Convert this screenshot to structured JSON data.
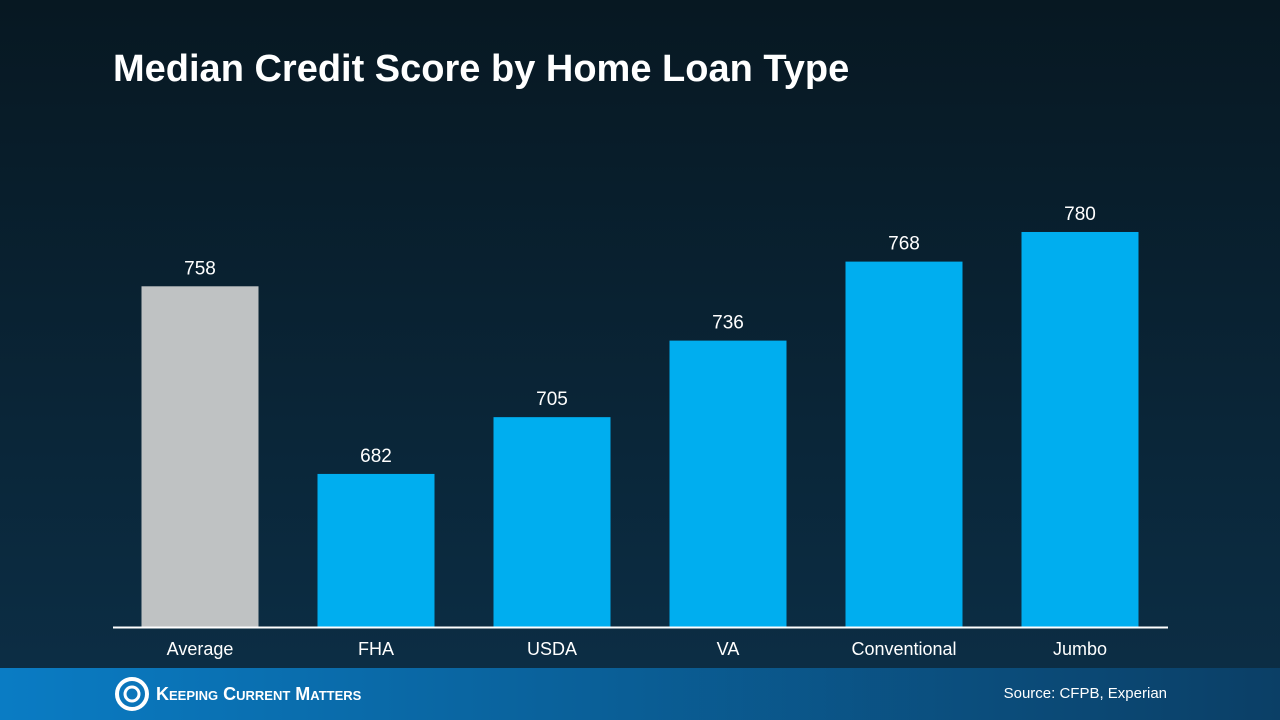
{
  "chart_data": {
    "type": "bar",
    "title": "Median Credit Score by Home Loan Type",
    "categories": [
      "Average",
      "FHA",
      "USDA",
      "VA",
      "Conventional",
      "Jumbo"
    ],
    "values": [
      758,
      682,
      705,
      736,
      768,
      780
    ],
    "colors": [
      "#bfc2c3",
      "#00aeef",
      "#00aeef",
      "#00aeef",
      "#00aeef",
      "#00aeef"
    ],
    "ylim": [
      620,
      800
    ]
  },
  "footer": {
    "brand": "Keeping Current Matters",
    "source": "Source: CFPB, Experian"
  }
}
